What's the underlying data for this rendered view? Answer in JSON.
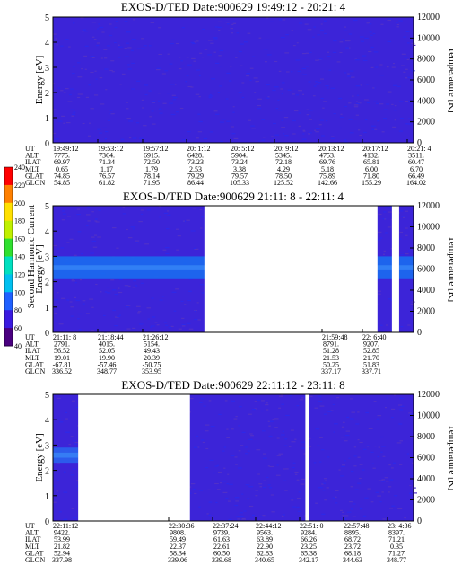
{
  "chart_data": [
    {
      "type": "heatmap",
      "title": "EXOS-D/TED   Date:900629  19:49:12 - 20:21: 4",
      "ylabel": "Energy [eV]",
      "y2label": "Temperature [K]",
      "ylim": [
        0,
        5
      ],
      "yticks": [
        "0",
        "1",
        "2",
        "3",
        "4",
        "5"
      ],
      "y2lim": [
        0,
        12000
      ],
      "y2ticks": [
        "0",
        "2000",
        "4000",
        "6000",
        "8000",
        "10000",
        "12000"
      ],
      "background_color": "#3c24d8",
      "band": null,
      "gaps": [],
      "ephemeris": {
        "rows": [
          "UT",
          "ALT",
          "ILAT",
          "MLT",
          "GLAT",
          "GLON"
        ],
        "columns": [
          [
            "19:49:12",
            "7775.",
            "69.97",
            "0.65",
            "74.85",
            "54.85"
          ],
          [
            "19:53:12",
            "7364.",
            "71.34",
            "1.17",
            "76.57",
            "61.82"
          ],
          [
            "19:57:12",
            "6915.",
            "72.50",
            "1.79",
            "78.14",
            "71.95"
          ],
          [
            "20: 1:12",
            "6428.",
            "73.23",
            "2.53",
            "79.29",
            "86.44"
          ],
          [
            "20: 5:12",
            "5904.",
            "73.24",
            "3.38",
            "79.57",
            "105.33"
          ],
          [
            "20: 9:12",
            "5345.",
            "72.18",
            "4.29",
            "78.50",
            "125.52"
          ],
          [
            "20:13:12",
            "4753.",
            "69.76",
            "5.18",
            "75.89",
            "142.66"
          ],
          [
            "20:17:12",
            "4132.",
            "65.81",
            "6.00",
            "71.80",
            "155.29"
          ],
          [
            "20:21: 4",
            "3511.",
            "60.47",
            "6.70",
            "66.49",
            "164.02"
          ]
        ]
      }
    },
    {
      "type": "heatmap",
      "title": "EXOS-D/TED   Date:900629  21:11: 8 - 22:11: 4",
      "ylabel": "Energy [eV]",
      "y2label": "Temperature [K]",
      "ylim": [
        0,
        5
      ],
      "yticks": [
        "0",
        "1",
        "2",
        "3",
        "4",
        "5"
      ],
      "y2lim": [
        0,
        12000
      ],
      "y2ticks": [
        "0",
        "2000",
        "4000",
        "6000",
        "8000",
        "10000",
        "12000"
      ],
      "background_color": "#3c24d8",
      "band": {
        "center_ev": 2.55,
        "width_ev": 0.9,
        "color": "#1a6cf0"
      },
      "gaps": [
        [
          0.42,
          0.9
        ],
        [
          0.94,
          0.96
        ]
      ],
      "ephemeris": {
        "rows": [
          "UT",
          "ALT",
          "ILAT",
          "MLT",
          "GLAT",
          "GLON"
        ],
        "columns": [
          [
            "21:11: 8",
            "2791.",
            "56.52",
            "19.01",
            "-67.81",
            "336.52"
          ],
          [
            "21:18:44",
            "4015.",
            "52.05",
            "19.90",
            "-57.46",
            "348.77"
          ],
          [
            "21:26:12",
            "5154.",
            "49.43",
            "20.39",
            "-50.75",
            "353.95"
          ],
          [
            "21:59:48",
            "8791.",
            "51.28",
            "21.53",
            "50.25",
            "337.17"
          ],
          [
            "22: 6:40",
            "9207.",
            "52.85",
            "21.70",
            "51.83",
            "337.71"
          ]
        ]
      }
    },
    {
      "type": "heatmap",
      "title": "EXOS-D/TED   Date:900629  22:11:12 - 23:11: 8",
      "ylabel": "Energy [eV]",
      "y2label": "Temperature [K]",
      "ylim": [
        0,
        5
      ],
      "yticks": [
        "0",
        "1",
        "2",
        "3",
        "4",
        "5"
      ],
      "y2lim": [
        0,
        12000
      ],
      "y2ticks": [
        "0",
        "2000",
        "4000",
        "6000",
        "8000",
        "10000",
        "12000"
      ],
      "background_color": "#3c24d8",
      "band": {
        "center_ev": 2.6,
        "width_ev": 0.6,
        "color": "#2a62ee",
        "x_end": 0.07
      },
      "gaps": [
        [
          0.07,
          0.38
        ],
        [
          0.7,
          0.71
        ]
      ],
      "ephemeris": {
        "rows": [
          "UT",
          "ALT",
          "ILAT",
          "MLT",
          "GLAT",
          "GLON"
        ],
        "columns": [
          [
            "22:11:12",
            "9422.",
            "53.99",
            "21.82",
            "52.94",
            "337.98"
          ],
          [
            "22:30:36",
            "9808.",
            "59.49",
            "22.37",
            "58.34",
            "339.06"
          ],
          [
            "22:37:24",
            "9739.",
            "61.63",
            "22.61",
            "60.50",
            "339.68"
          ],
          [
            "22:44:12",
            "9563.",
            "63.89",
            "22.90",
            "62.83",
            "340.65"
          ],
          [
            "22:51: 0",
            "9284.",
            "66.26",
            "23.25",
            "65.38",
            "342.17"
          ],
          [
            "22:57:48",
            "8895.",
            "68.72",
            "23.72",
            "68.18",
            "344.63"
          ],
          [
            "23: 4:36",
            "8397.",
            "71.21",
            "0.35",
            "71.27",
            "348.77"
          ]
        ]
      }
    }
  ],
  "colorbar": {
    "label": "Second Harmonic Current",
    "ticks": [
      "40",
      "60",
      "80",
      "100",
      "120",
      "140",
      "160",
      "180",
      "200",
      "220",
      "240"
    ],
    "colors": [
      "#000000",
      "#4a0080",
      "#3a1ae0",
      "#1f60ff",
      "#00c0f0",
      "#00e0c0",
      "#30e030",
      "#c0f000",
      "#ffe000",
      "#ff8000",
      "#ff0000"
    ]
  }
}
